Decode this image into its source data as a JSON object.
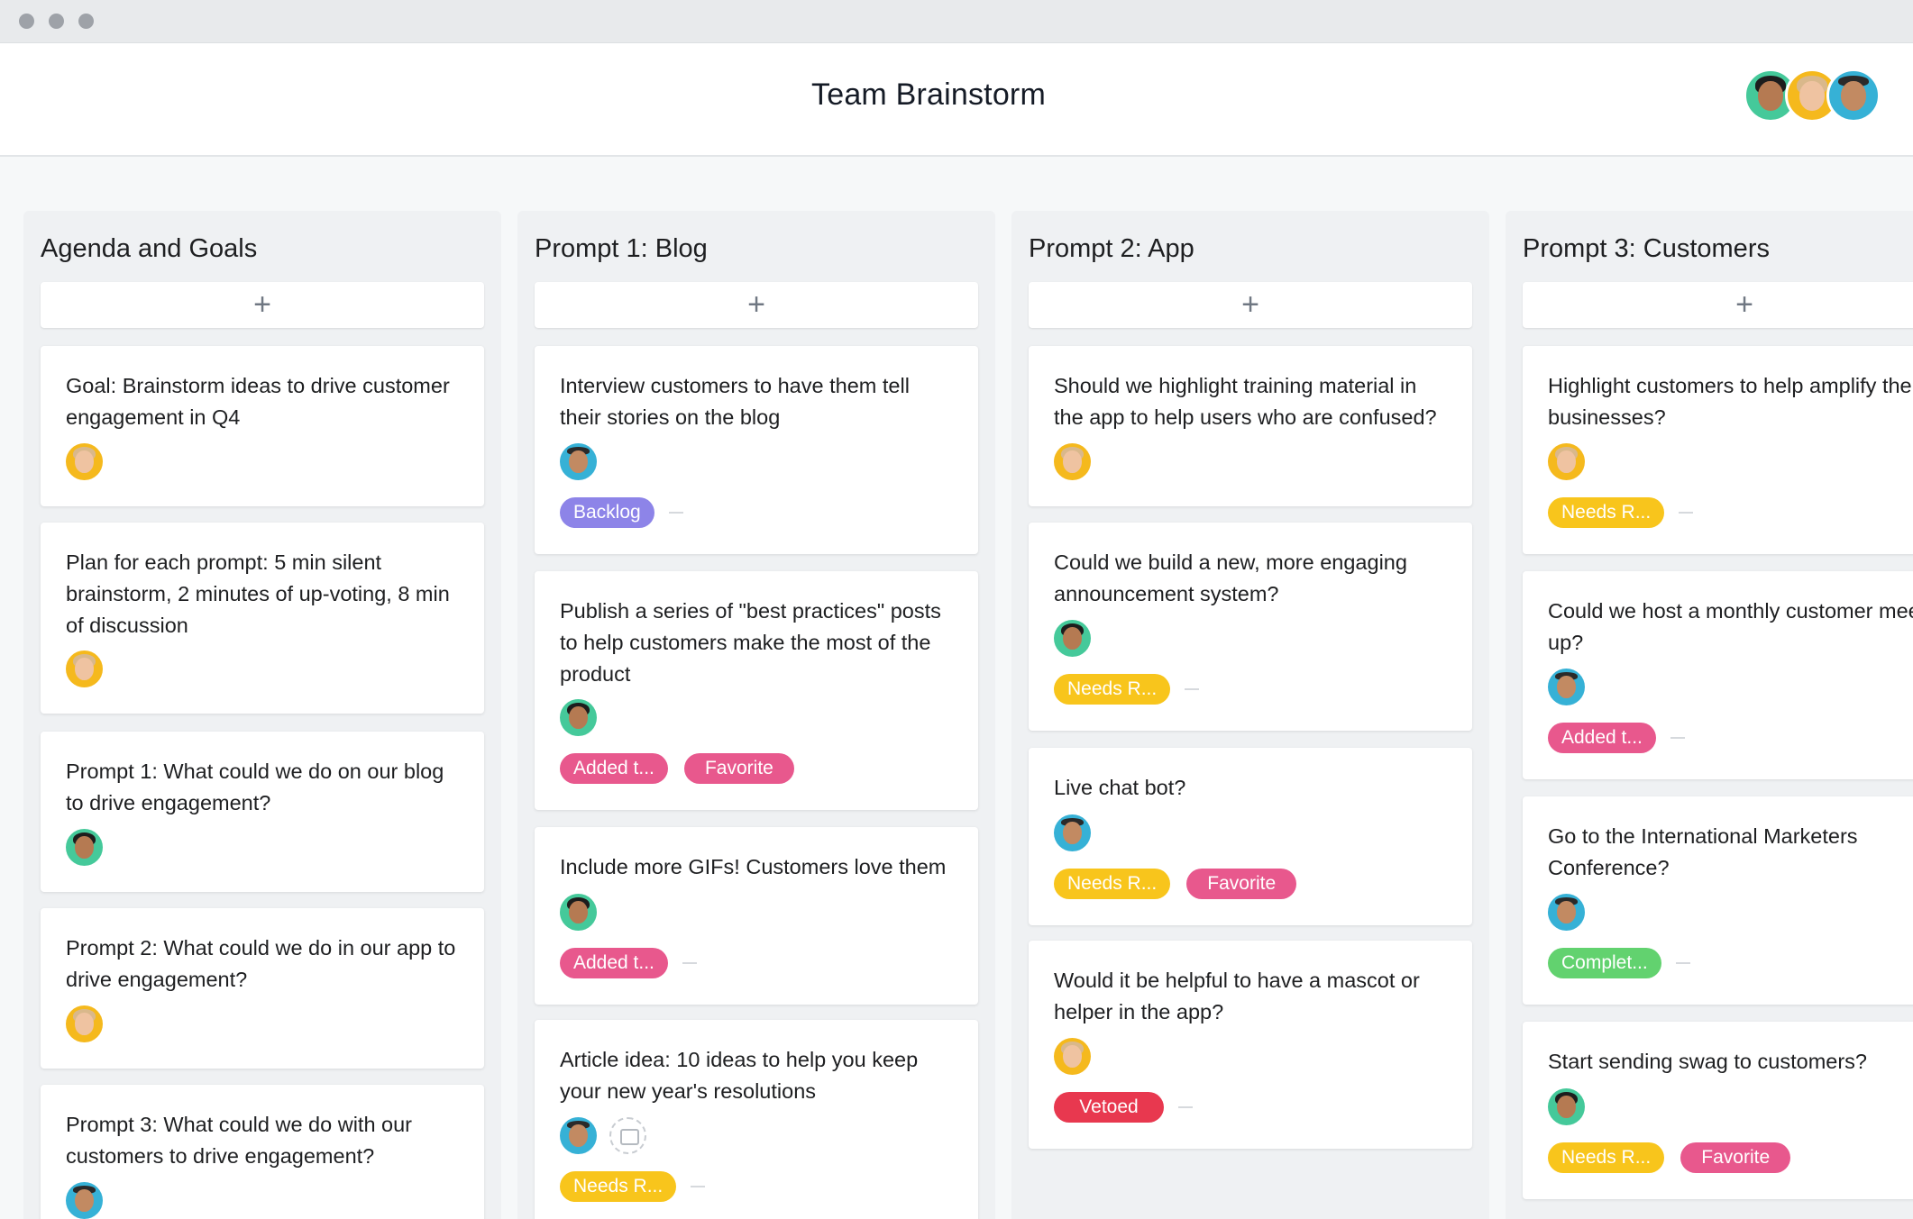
{
  "window": {
    "title": "Team Brainstorm"
  },
  "header": {
    "members": [
      "member-1",
      "member-2",
      "member-3"
    ]
  },
  "columns": [
    {
      "title": "Agenda and Goals",
      "add_label": "+",
      "cards": [
        {
          "text": "Goal: Brainstorm ideas to drive customer engagement in Q4",
          "assignee": "blonde"
        },
        {
          "text": "Plan for each prompt: 5 min silent brainstorm, 2 minutes of up-voting, 8 min of discussion",
          "assignee": "blonde"
        },
        {
          "text": "Prompt 1: What could we do on our blog to drive engagement?",
          "assignee": "dark"
        },
        {
          "text": "Prompt 2: What could we do in our app to drive engagement?",
          "assignee": "blonde"
        },
        {
          "text": "Prompt 3: What could we do with our customers to drive engagement?",
          "assignee": "glasses"
        }
      ]
    },
    {
      "title": "Prompt 1: Blog",
      "add_label": "+",
      "cards": [
        {
          "text": "Interview customers to have them tell their stories on the blog",
          "assignee": "glasses",
          "tags": [
            "Backlog"
          ]
        },
        {
          "text": "Publish a series of \"best practices\" posts to help customers make the most of the product",
          "assignee": "dark",
          "tags": [
            "Added t...",
            "Favorite"
          ]
        },
        {
          "text": "Include more GIFs! Customers love them",
          "assignee": "dark",
          "tags": [
            "Added t..."
          ]
        },
        {
          "text": "Article idea: 10 ideas to help you keep your new year's resolutions",
          "assignee": "glasses",
          "tags": [
            "Needs R..."
          ]
        }
      ]
    },
    {
      "title": "Prompt 2: App",
      "add_label": "+",
      "cards": [
        {
          "text": "Should we highlight training material in the app to help users who are confused?",
          "assignee": "blonde"
        },
        {
          "text": "Could we build a new, more engaging announcement system?",
          "assignee": "dark",
          "tags": [
            "Needs R..."
          ]
        },
        {
          "text": "Live chat bot?",
          "assignee": "glasses",
          "tags": [
            "Needs R...",
            "Favorite"
          ]
        },
        {
          "text": "Would it be helpful to have a mascot or helper in the app?",
          "assignee": "blonde",
          "tags": [
            "Vetoed"
          ]
        }
      ]
    },
    {
      "title": "Prompt 3: Customers",
      "add_label": "+",
      "cards": [
        {
          "text": "Highlight customers to help amplify their businesses?",
          "assignee": "blonde",
          "tags": [
            "Needs R..."
          ]
        },
        {
          "text": "Could we host a monthly customer meet up?",
          "assignee": "glasses",
          "tags": [
            "Added t..."
          ]
        },
        {
          "text": "Go to the International Marketers Conference?",
          "assignee": "glasses",
          "tags": [
            "Complet..."
          ]
        },
        {
          "text": "Start sending swag to customers?",
          "assignee": "dark",
          "tags": [
            "Needs R...",
            "Favorite"
          ]
        }
      ]
    }
  ],
  "tag_colors": {
    "backlog": "#8d84e8",
    "added": "#e8588d",
    "favorite": "#e8588d",
    "needs_review": "#f8c51c",
    "vetoed": "#e8384f",
    "complete": "#62d26f"
  }
}
